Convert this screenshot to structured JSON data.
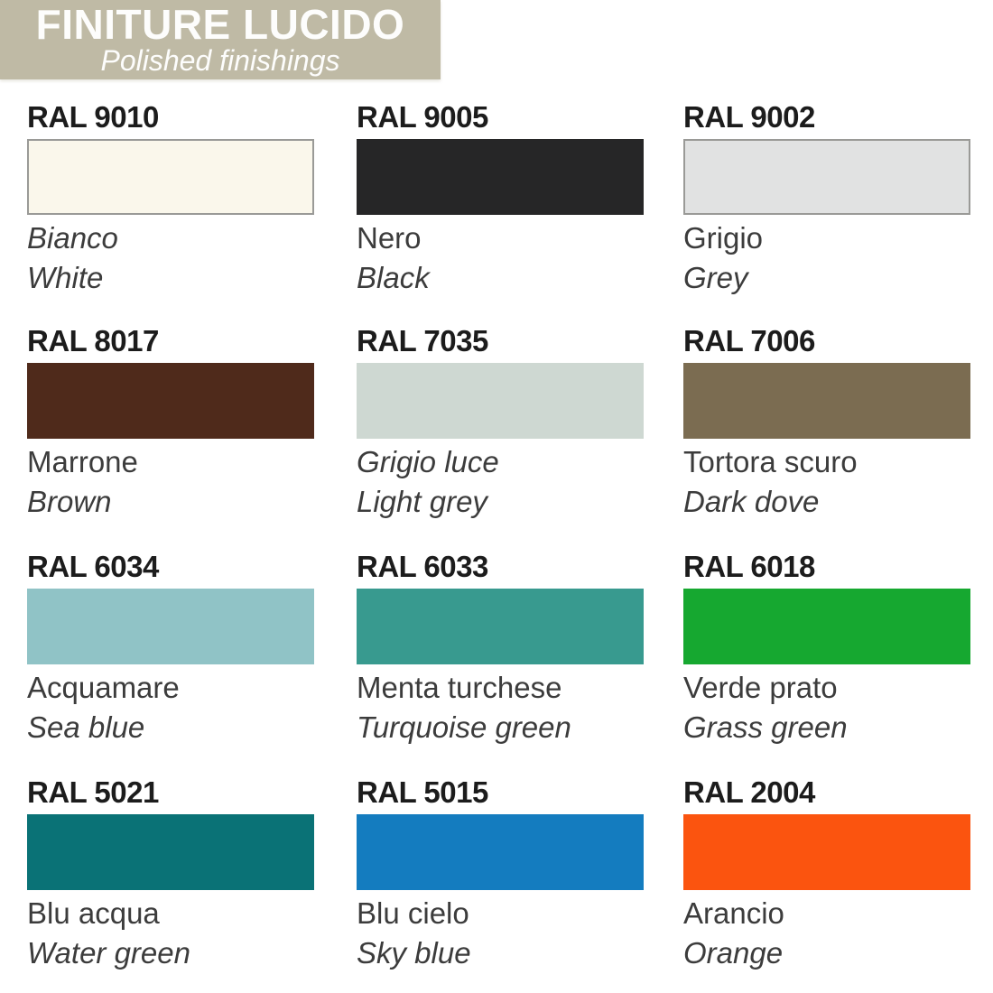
{
  "header": {
    "title": "FINITURE LUCIDO",
    "subtitle": "Polished finishings",
    "background_color": "#bfbaa5",
    "text_color": "#ffffff"
  },
  "swatches": [
    {
      "ral": "RAL 9010",
      "name_it": "Bianco",
      "name_en": "White",
      "color": "#faf7eb"
    },
    {
      "ral": "RAL 9005",
      "name_it": "Nero",
      "name_en": "Black",
      "color": "#262627"
    },
    {
      "ral": "RAL 9002",
      "name_it": "Grigio",
      "name_en": "Grey",
      "color": "#e1e2e2"
    },
    {
      "ral": "RAL 8017",
      "name_it": "Marrone",
      "name_en": "Brown",
      "color": "#4f2a1b"
    },
    {
      "ral": "RAL 7035",
      "name_it": "Grigio luce",
      "name_en": "Light grey",
      "color": "#ced8d2"
    },
    {
      "ral": "RAL 7006",
      "name_it": "Tortora scuro",
      "name_en": "Dark dove",
      "color": "#7b6c51"
    },
    {
      "ral": "RAL 6034",
      "name_it": "Acquamare",
      "name_en": "Sea blue",
      "color": "#90c3c6"
    },
    {
      "ral": "RAL 6033",
      "name_it": "Menta turchese",
      "name_en": "Turquoise green",
      "color": "#389a8f"
    },
    {
      "ral": "RAL 6018",
      "name_it": "Verde prato",
      "name_en": "Grass green",
      "color": "#16a830"
    },
    {
      "ral": "RAL 5021",
      "name_it": "Blu acqua",
      "name_en": "Water green",
      "color": "#0a7276"
    },
    {
      "ral": "RAL 5015",
      "name_it": "Blu cielo",
      "name_en": "Sky blue",
      "color": "#147cbf"
    },
    {
      "ral": "RAL 2004",
      "name_it": "Arancio",
      "name_en": "Orange",
      "color": "#fb540f"
    }
  ]
}
